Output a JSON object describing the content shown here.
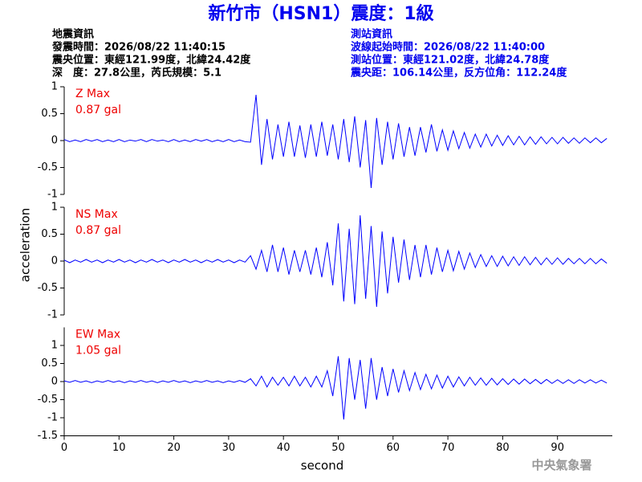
{
  "header": {
    "title": "新竹市（HSN1）震度：1級",
    "left": [
      "地震資訊",
      "發震時間：2026/08/22 11:40:15",
      "震央位置：東經121.99度，北緯24.42度",
      "深　度：27.8公里，芮氏規模：5.1"
    ],
    "right": [
      "測站資訊",
      "波線起始時間：2026/08/22 11:40:00",
      "測站位置：東經121.02度，北緯24.78度",
      "震央距：106.14公里，反方位角：112.24度"
    ]
  },
  "footer": "中央氣象署",
  "chart_data": [
    {
      "type": "line",
      "annotations": [
        "Z Max",
        "0.87 gal"
      ],
      "color": "#0000ff",
      "xlim": [
        0,
        100
      ],
      "ylim": [
        -1,
        1
      ],
      "yticks": [
        -1,
        -0.5,
        0,
        0.5,
        1
      ],
      "x": [
        0,
        1,
        2,
        3,
        4,
        5,
        6,
        7,
        8,
        9,
        10,
        11,
        12,
        13,
        14,
        15,
        16,
        17,
        18,
        19,
        20,
        21,
        22,
        23,
        24,
        25,
        26,
        27,
        28,
        29,
        30,
        31,
        32,
        33,
        34,
        35,
        36,
        37,
        38,
        39,
        40,
        41,
        42,
        43,
        44,
        45,
        46,
        47,
        48,
        49,
        50,
        51,
        52,
        53,
        54,
        55,
        56,
        57,
        58,
        59,
        60,
        61,
        62,
        63,
        64,
        65,
        66,
        67,
        68,
        69,
        70,
        71,
        72,
        73,
        74,
        75,
        76,
        77,
        78,
        79,
        80,
        81,
        82,
        83,
        84,
        85,
        86,
        87,
        88,
        89,
        90,
        91,
        92,
        93,
        94,
        95,
        96,
        97,
        98,
        99
      ],
      "values": [
        0.02,
        -0.02,
        0.01,
        -0.02,
        0.02,
        -0.01,
        0.02,
        -0.02,
        0.01,
        -0.02,
        0.02,
        -0.02,
        0.01,
        -0.01,
        0.02,
        -0.02,
        0.02,
        -0.01,
        0.01,
        -0.02,
        0.02,
        -0.02,
        0.01,
        -0.02,
        0.02,
        -0.01,
        0.02,
        -0.02,
        0.01,
        -0.02,
        0.02,
        -0.02,
        0.01,
        -0.02,
        -0.03,
        0.85,
        -0.45,
        0.4,
        -0.35,
        0.3,
        -0.3,
        0.35,
        -0.3,
        0.28,
        -0.32,
        0.3,
        -0.3,
        0.35,
        -0.28,
        0.3,
        -0.35,
        0.4,
        -0.4,
        0.45,
        -0.5,
        0.38,
        -0.88,
        0.42,
        -0.45,
        0.35,
        -0.35,
        0.32,
        -0.3,
        0.25,
        -0.28,
        0.25,
        -0.22,
        0.3,
        -0.2,
        0.2,
        -0.18,
        0.18,
        -0.15,
        0.15,
        -0.14,
        0.12,
        -0.12,
        0.12,
        -0.1,
        0.1,
        -0.09,
        0.09,
        -0.08,
        0.08,
        -0.08,
        0.07,
        -0.07,
        0.07,
        -0.06,
        0.06,
        -0.06,
        0.06,
        -0.05,
        0.05,
        -0.05,
        0.05,
        -0.04,
        0.05,
        -0.04,
        0.04
      ]
    },
    {
      "type": "line",
      "annotations": [
        "NS Max",
        "0.87 gal"
      ],
      "color": "#0000ff",
      "ylabel": "acceleration",
      "xlim": [
        0,
        100
      ],
      "ylim": [
        -1,
        1
      ],
      "yticks": [
        -1,
        -0.5,
        0,
        0.5,
        1
      ],
      "x": [
        0,
        1,
        2,
        3,
        4,
        5,
        6,
        7,
        8,
        9,
        10,
        11,
        12,
        13,
        14,
        15,
        16,
        17,
        18,
        19,
        20,
        21,
        22,
        23,
        24,
        25,
        26,
        27,
        28,
        29,
        30,
        31,
        32,
        33,
        34,
        35,
        36,
        37,
        38,
        39,
        40,
        41,
        42,
        43,
        44,
        45,
        46,
        47,
        48,
        49,
        50,
        51,
        52,
        53,
        54,
        55,
        56,
        57,
        58,
        59,
        60,
        61,
        62,
        63,
        64,
        65,
        66,
        67,
        68,
        69,
        70,
        71,
        72,
        73,
        74,
        75,
        76,
        77,
        78,
        79,
        80,
        81,
        82,
        83,
        84,
        85,
        86,
        87,
        88,
        89,
        90,
        91,
        92,
        93,
        94,
        95,
        96,
        97,
        98,
        99
      ],
      "values": [
        0.02,
        -0.03,
        0.02,
        -0.02,
        0.03,
        -0.02,
        0.02,
        -0.03,
        0.02,
        -0.02,
        0.03,
        -0.02,
        0.02,
        -0.03,
        0.02,
        -0.02,
        0.03,
        -0.02,
        0.02,
        -0.03,
        0.02,
        -0.02,
        0.03,
        -0.02,
        0.02,
        -0.03,
        0.02,
        -0.02,
        0.03,
        -0.02,
        0.02,
        -0.03,
        0.02,
        -0.02,
        0.1,
        -0.15,
        0.2,
        -0.2,
        0.3,
        -0.2,
        0.25,
        -0.25,
        0.2,
        -0.2,
        0.2,
        -0.25,
        0.25,
        -0.3,
        0.35,
        -0.45,
        0.7,
        -0.75,
        0.6,
        -0.8,
        0.85,
        -0.7,
        0.65,
        -0.85,
        0.55,
        -0.6,
        0.45,
        -0.4,
        0.4,
        -0.35,
        0.3,
        -0.3,
        0.3,
        -0.25,
        0.25,
        -0.2,
        0.2,
        -0.18,
        0.18,
        -0.15,
        0.15,
        -0.12,
        0.12,
        -0.1,
        0.1,
        -0.1,
        0.09,
        -0.09,
        0.08,
        -0.08,
        0.08,
        -0.07,
        0.07,
        -0.07,
        0.06,
        -0.06,
        0.06,
        -0.06,
        0.05,
        -0.05,
        0.05,
        -0.05,
        0.05,
        -0.05,
        0.04,
        -0.04
      ]
    },
    {
      "type": "line",
      "annotations": [
        "EW Max",
        "1.05 gal"
      ],
      "color": "#0000ff",
      "xlabel": "second",
      "xlim": [
        0,
        100
      ],
      "ylim": [
        -1.5,
        1.5
      ],
      "yticks": [
        -1.5,
        -1,
        -0.5,
        0,
        0.5,
        1
      ],
      "xticks": [
        0,
        10,
        20,
        30,
        40,
        50,
        60,
        70,
        80,
        90
      ],
      "x": [
        0,
        1,
        2,
        3,
        4,
        5,
        6,
        7,
        8,
        9,
        10,
        11,
        12,
        13,
        14,
        15,
        16,
        17,
        18,
        19,
        20,
        21,
        22,
        23,
        24,
        25,
        26,
        27,
        28,
        29,
        30,
        31,
        32,
        33,
        34,
        35,
        36,
        37,
        38,
        39,
        40,
        41,
        42,
        43,
        44,
        45,
        46,
        47,
        48,
        49,
        50,
        51,
        52,
        53,
        54,
        55,
        56,
        57,
        58,
        59,
        60,
        61,
        62,
        63,
        64,
        65,
        66,
        67,
        68,
        69,
        70,
        71,
        72,
        73,
        74,
        75,
        76,
        77,
        78,
        79,
        80,
        81,
        82,
        83,
        84,
        85,
        86,
        87,
        88,
        89,
        90,
        91,
        92,
        93,
        94,
        95,
        96,
        97,
        98,
        99
      ],
      "values": [
        0.02,
        -0.02,
        0.03,
        -0.02,
        0.02,
        -0.03,
        0.02,
        -0.02,
        0.03,
        -0.02,
        0.02,
        -0.03,
        0.02,
        -0.02,
        0.03,
        -0.02,
        0.02,
        -0.03,
        0.02,
        -0.02,
        0.03,
        -0.02,
        0.02,
        -0.03,
        0.02,
        -0.02,
        0.03,
        -0.02,
        0.02,
        -0.03,
        0.02,
        -0.02,
        0.03,
        -0.02,
        0.08,
        -0.12,
        0.15,
        -0.15,
        0.12,
        -0.1,
        0.12,
        -0.12,
        0.15,
        -0.12,
        0.12,
        -0.15,
        0.15,
        -0.15,
        0.3,
        -0.4,
        0.7,
        -1.05,
        0.65,
        -0.5,
        0.6,
        -0.75,
        0.65,
        -0.5,
        0.4,
        -0.4,
        0.35,
        -0.3,
        0.3,
        -0.25,
        0.25,
        -0.22,
        0.2,
        -0.2,
        0.18,
        -0.18,
        0.15,
        -0.15,
        0.13,
        -0.12,
        0.12,
        -0.1,
        0.1,
        -0.1,
        0.09,
        -0.09,
        0.08,
        -0.08,
        0.07,
        -0.07,
        0.07,
        -0.06,
        0.06,
        -0.06,
        0.06,
        -0.05,
        0.05,
        -0.05,
        0.05,
        -0.05,
        0.05,
        -0.04,
        0.05,
        -0.04,
        0.04,
        -0.04
      ]
    }
  ]
}
